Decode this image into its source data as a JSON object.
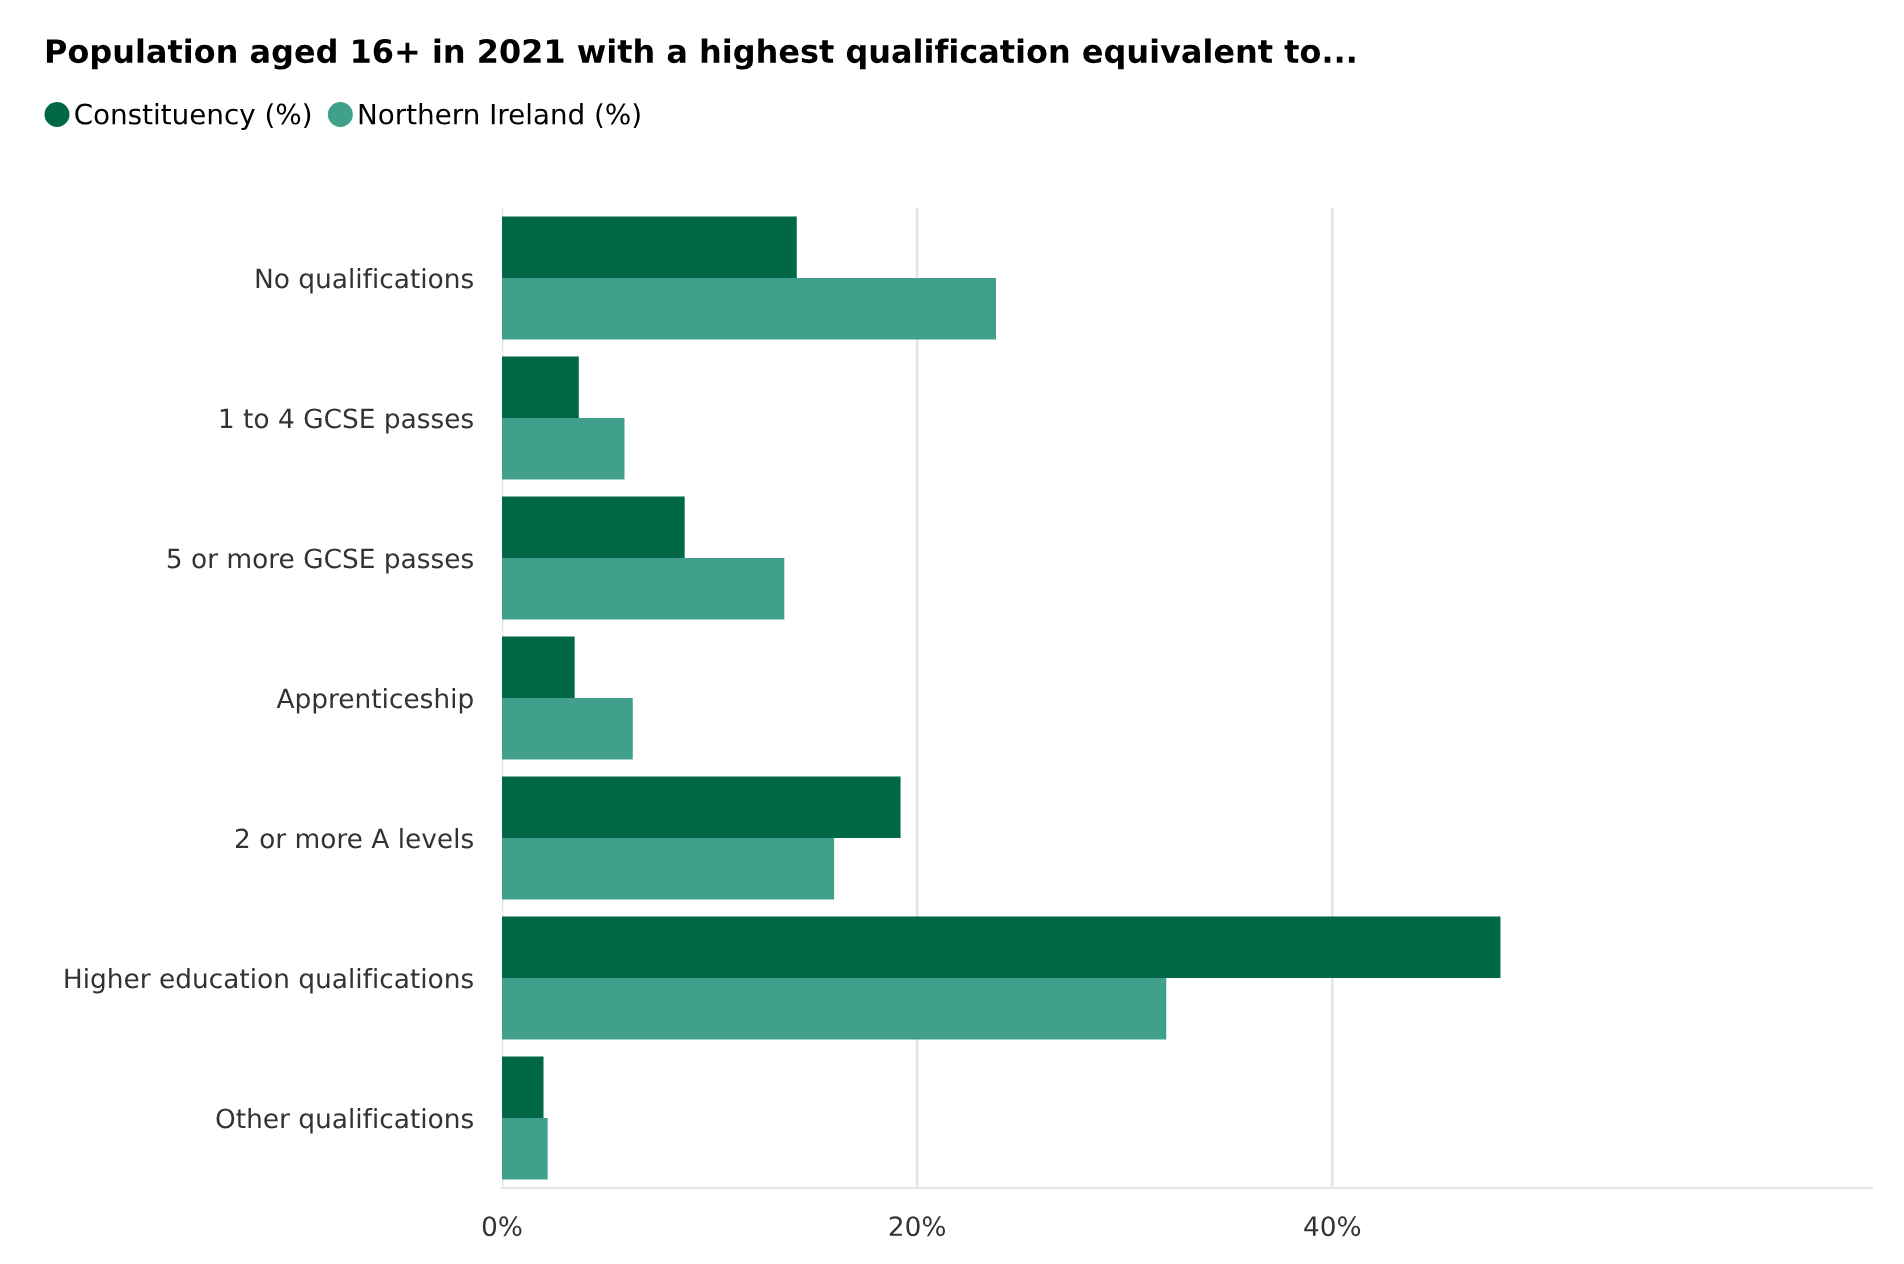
{
  "chart_data": {
    "type": "bar",
    "orientation": "horizontal",
    "title": "Population aged 16+ in 2021 with a highest qualification equivalent to...",
    "categories": [
      "No qualifications",
      "1 to 4 GCSE passes",
      "5 or more GCSE passes",
      "Apprenticeship",
      "2 or more A levels",
      "Higher education qualifications",
      "Other qualifications"
    ],
    "series": [
      {
        "name": "Constituency (%)",
        "color": "#006747",
        "values": [
          14.2,
          3.7,
          8.8,
          3.5,
          19.2,
          48.1,
          2.0
        ]
      },
      {
        "name": "Northern Ireland (%)",
        "color": "#40a08b",
        "values": [
          23.8,
          5.9,
          13.6,
          6.3,
          16.0,
          32.0,
          2.2
        ]
      }
    ],
    "xlim": [
      0,
      66
    ],
    "xticks": [
      {
        "value": 0,
        "label": "0%"
      },
      {
        "value": 20,
        "label": "20%"
      },
      {
        "value": 40,
        "label": "40%"
      }
    ],
    "grid": "x",
    "legend": "top left",
    "marker": "circle"
  }
}
